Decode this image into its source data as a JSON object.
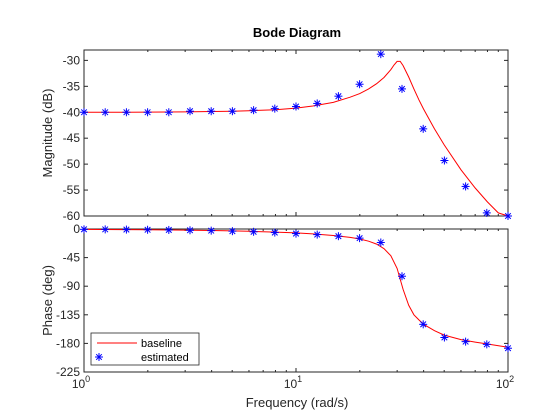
{
  "chart_data": {
    "type": "line",
    "title": "Bode Diagram",
    "xlabel": "Frequency  (rad/s)",
    "x_scale": "log",
    "xlim": [
      1,
      100
    ],
    "x_tick_labels": [
      {
        "value": 1,
        "base": "10",
        "exp": "0"
      },
      {
        "value": 10,
        "base": "10",
        "exp": "1"
      },
      {
        "value": 100,
        "base": "10",
        "exp": "2"
      }
    ],
    "grid": false,
    "legend_position": "bottom-left of phase panel",
    "colors": {
      "baseline": "#ff0000",
      "estimated": "#0000ff",
      "axes": "#262626"
    },
    "panels": [
      {
        "ylabel": "Magnitude (dB)",
        "ylim": [
          -60,
          -28
        ],
        "yticks": [
          -60,
          -55,
          -50,
          -45,
          -40,
          -35,
          -30
        ],
        "series": [
          {
            "name": "baseline",
            "style": "line",
            "x": [
              1,
              1.5,
              2,
              3,
              4,
              5,
              6,
              8,
              10,
              12,
              15,
              18,
              20,
              22,
              24,
              26,
              28,
              29,
              30,
              31,
              32,
              34,
              36,
              38,
              40,
              45,
              50,
              60,
              70,
              80,
              90,
              100
            ],
            "y": [
              -40,
              -40,
              -39.97,
              -39.93,
              -39.86,
              -39.8,
              -39.7,
              -39.5,
              -39.2,
              -38.8,
              -38.1,
              -37.1,
              -36.4,
              -35.5,
              -34.5,
              -33.3,
              -31.8,
              -30.9,
              -30.2,
              -30.2,
              -31.0,
              -33.2,
              -35.5,
              -37.6,
              -39.4,
              -43.2,
              -46.3,
              -51.1,
              -54.6,
              -57.3,
              -59.4,
              -61.0
            ]
          },
          {
            "name": "estimated",
            "style": "markers",
            "marker": "asterisk",
            "x": [
              1,
              1.259,
              1.585,
              1.995,
              2.512,
              3.162,
              3.981,
              5.012,
              6.31,
              7.943,
              10,
              12.59,
              15.85,
              19.95,
              25.12,
              31.62,
              39.81,
              50.12,
              63.1,
              79.43,
              100
            ],
            "y": [
              -40,
              -40,
              -40,
              -40,
              -40,
              -39.8,
              -39.8,
              -39.8,
              -39.6,
              -39.3,
              -38.9,
              -38.3,
              -36.9,
              -34.6,
              -28.8,
              -35.5,
              -43.2,
              -49.3,
              -54.3,
              -59.4,
              -61.2
            ]
          }
        ]
      },
      {
        "ylabel": "Phase (deg)",
        "ylim": [
          -225,
          0
        ],
        "yticks": [
          -225,
          -180,
          -135,
          -90,
          -45,
          0
        ],
        "series": [
          {
            "name": "baseline",
            "style": "line",
            "x": [
              1,
              1.5,
              2,
              3,
              4,
              5,
              6,
              8,
              10,
              12,
              15,
              18,
              20,
              22,
              24,
              26,
              28,
              30,
              32,
              34,
              36,
              38,
              40,
              45,
              50,
              60,
              70,
              80,
              100
            ],
            "y": [
              -0.6,
              -0.9,
              -1.2,
              -1.8,
              -2.4,
              -3.0,
              -3.6,
              -4.9,
              -6.2,
              -7.7,
              -10.2,
              -13.2,
              -15.8,
              -19.2,
              -23.8,
              -31,
              -42,
              -62,
              -95,
              -120,
              -135,
              -143,
              -150,
              -160,
              -167,
              -174,
              -178,
              -181,
              -186
            ]
          },
          {
            "name": "estimated",
            "style": "markers",
            "marker": "asterisk",
            "x": [
              1,
              1.259,
              1.585,
              1.995,
              2.512,
              3.162,
              3.981,
              5.012,
              6.31,
              7.943,
              10,
              12.59,
              15.85,
              19.95,
              25.12,
              31.62,
              39.81,
              50.12,
              63.1,
              79.43,
              100
            ],
            "y": [
              -0.5,
              -0.6,
              -0.9,
              -1.2,
              -1.5,
              -2.0,
              -2.6,
              -3.4,
              -4.4,
              -5.6,
              -7.2,
              -8.8,
              -11.3,
              -14.4,
              -21.2,
              -74.3,
              -150,
              -170.7,
              -177.2,
              -181.5,
              -187.6
            ]
          }
        ]
      }
    ],
    "legend": [
      {
        "label": "baseline",
        "style": "line",
        "color": "#ff0000"
      },
      {
        "label": "estimated",
        "style": "marker",
        "color": "#0000ff"
      }
    ]
  }
}
